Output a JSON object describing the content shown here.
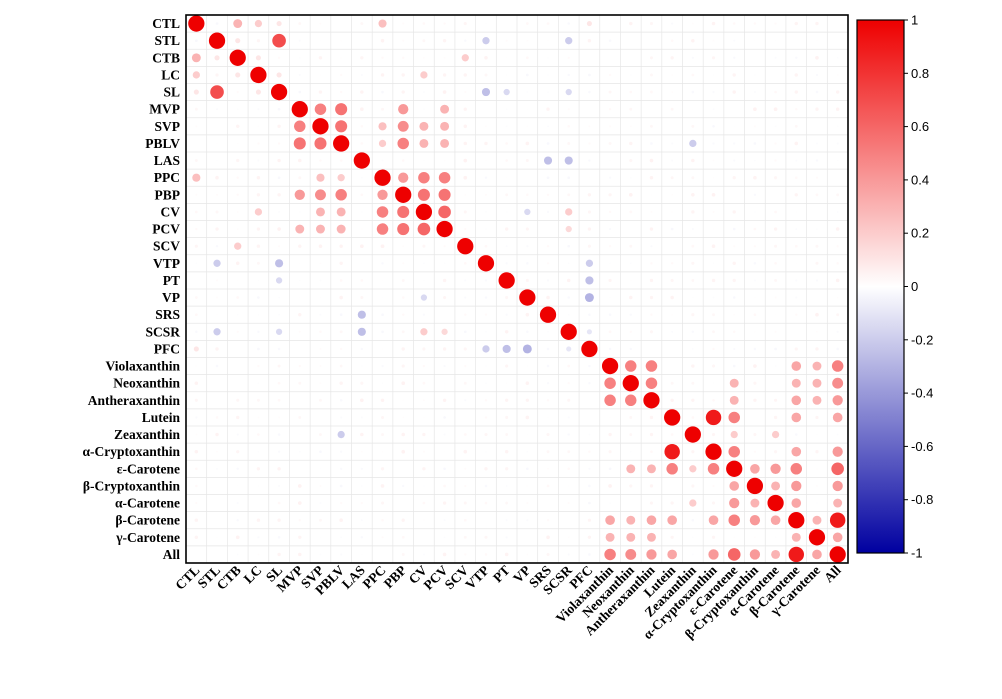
{
  "chart_data": {
    "type": "heatmap",
    "subtype": "correlation-dot-matrix",
    "variables": [
      "CTL",
      "STL",
      "CTB",
      "LC",
      "SL",
      "MVP",
      "SVP",
      "PBLV",
      "LAS",
      "PPC",
      "PBP",
      "CV",
      "PCV",
      "SCV",
      "VTP",
      "PT",
      "VP",
      "SRS",
      "SCSR",
      "PFC",
      "Violaxanthin",
      "Neoxanthin",
      "Antheraxanthin",
      "Lutein",
      "Zeaxanthin",
      "α-Cryptoxanthin",
      "ε-Carotene",
      "β-Cryptoxanthin",
      "α-Carotene",
      "β-Carotene",
      "γ-Carotene",
      "All"
    ],
    "encoding": "circle area and color encode correlation coefficient",
    "color_scale": {
      "min": -1,
      "max": 1,
      "low_color": "#0000a0",
      "mid_color": "#ffffff",
      "high_color": "#ee0000"
    },
    "colorbar_ticks": [
      "1",
      "0.8",
      "0.6",
      "0.4",
      "0.2",
      "0",
      "-0.2",
      "-0.4",
      "-0.6",
      "-0.8",
      "-1"
    ],
    "diagonal": 1,
    "correlations": [
      [
        "CTL",
        "CTB",
        0.3
      ],
      [
        "CTL",
        "LC",
        0.2
      ],
      [
        "CTL",
        "SL",
        0.1
      ],
      [
        "CTL",
        "PPC",
        0.25
      ],
      [
        "CTL",
        "PFC",
        0.1
      ],
      [
        "STL",
        "SL",
        0.7
      ],
      [
        "STL",
        "CTB",
        0.1
      ],
      [
        "STL",
        "VTP",
        -0.2
      ],
      [
        "STL",
        "SCSR",
        -0.2
      ],
      [
        "CTB",
        "LC",
        0.1
      ],
      [
        "CTB",
        "SCV",
        0.2
      ],
      [
        "LC",
        "CV",
        0.2
      ],
      [
        "LC",
        "SL",
        0.1
      ],
      [
        "SL",
        "VTP",
        -0.25
      ],
      [
        "SL",
        "PT",
        -0.15
      ],
      [
        "SL",
        "SCSR",
        -0.15
      ],
      [
        "MVP",
        "SVP",
        0.5
      ],
      [
        "MVP",
        "PBLV",
        0.55
      ],
      [
        "MVP",
        "PBP",
        0.4
      ],
      [
        "MVP",
        "PCV",
        0.3
      ],
      [
        "SVP",
        "PBLV",
        0.55
      ],
      [
        "SVP",
        "PPC",
        0.25
      ],
      [
        "SVP",
        "PBP",
        0.45
      ],
      [
        "SVP",
        "CV",
        0.3
      ],
      [
        "SVP",
        "PCV",
        0.3
      ],
      [
        "PBLV",
        "PPC",
        0.2
      ],
      [
        "PBLV",
        "PBP",
        0.5
      ],
      [
        "PBLV",
        "CV",
        0.3
      ],
      [
        "PBLV",
        "PCV",
        0.3
      ],
      [
        "LAS",
        "SRS",
        -0.25
      ],
      [
        "LAS",
        "SCSR",
        -0.25
      ],
      [
        "PPC",
        "PBP",
        0.4
      ],
      [
        "PPC",
        "CV",
        0.5
      ],
      [
        "PPC",
        "PCV",
        0.5
      ],
      [
        "PBP",
        "CV",
        0.55
      ],
      [
        "PBP",
        "PCV",
        0.55
      ],
      [
        "CV",
        "PCV",
        0.6
      ],
      [
        "CV",
        "SCSR",
        0.2
      ],
      [
        "CV",
        "VP",
        -0.15
      ],
      [
        "PCV",
        "SCSR",
        0.15
      ],
      [
        "VTP",
        "PFC",
        -0.2
      ],
      [
        "PT",
        "PFC",
        -0.25
      ],
      [
        "VP",
        "PFC",
        -0.3
      ],
      [
        "SCSR",
        "PFC",
        -0.1
      ],
      [
        "Violaxanthin",
        "Neoxanthin",
        0.5
      ],
      [
        "Violaxanthin",
        "Antheraxanthin",
        0.5
      ],
      [
        "Violaxanthin",
        "β-Carotene",
        0.35
      ],
      [
        "Violaxanthin",
        "γ-Carotene",
        0.3
      ],
      [
        "Violaxanthin",
        "All",
        0.5
      ],
      [
        "Neoxanthin",
        "Antheraxanthin",
        0.5
      ],
      [
        "Neoxanthin",
        "ε-Carotene",
        0.3
      ],
      [
        "Neoxanthin",
        "β-Carotene",
        0.3
      ],
      [
        "Neoxanthin",
        "γ-Carotene",
        0.3
      ],
      [
        "Neoxanthin",
        "All",
        0.45
      ],
      [
        "Antheraxanthin",
        "ε-Carotene",
        0.3
      ],
      [
        "Antheraxanthin",
        "β-Carotene",
        0.35
      ],
      [
        "Antheraxanthin",
        "γ-Carotene",
        0.3
      ],
      [
        "Antheraxanthin",
        "All",
        0.4
      ],
      [
        "Lutein",
        "α-Cryptoxanthin",
        0.9
      ],
      [
        "Lutein",
        "ε-Carotene",
        0.5
      ],
      [
        "Lutein",
        "β-Carotene",
        0.35
      ],
      [
        "Lutein",
        "All",
        0.35
      ],
      [
        "Zeaxanthin",
        "ε-Carotene",
        0.2
      ],
      [
        "Zeaxanthin",
        "α-Carotene",
        0.2
      ],
      [
        "Zeaxanthin",
        "PBLV",
        -0.2
      ],
      [
        "α-Cryptoxanthin",
        "ε-Carotene",
        0.5
      ],
      [
        "α-Cryptoxanthin",
        "β-Carotene",
        0.35
      ],
      [
        "α-Cryptoxanthin",
        "All",
        0.4
      ],
      [
        "ε-Carotene",
        "β-Cryptoxanthin",
        0.35
      ],
      [
        "ε-Carotene",
        "α-Carotene",
        0.4
      ],
      [
        "ε-Carotene",
        "β-Carotene",
        0.5
      ],
      [
        "ε-Carotene",
        "All",
        0.6
      ],
      [
        "β-Cryptoxanthin",
        "α-Carotene",
        0.3
      ],
      [
        "β-Cryptoxanthin",
        "β-Carotene",
        0.4
      ],
      [
        "β-Cryptoxanthin",
        "All",
        0.4
      ],
      [
        "α-Carotene",
        "β-Carotene",
        0.35
      ],
      [
        "α-Carotene",
        "All",
        0.3
      ],
      [
        "β-Carotene",
        "γ-Carotene",
        0.3
      ],
      [
        "β-Carotene",
        "All",
        0.9
      ],
      [
        "γ-Carotene",
        "All",
        0.35
      ]
    ],
    "background_noise": 0.04,
    "title": "",
    "legend": "colorbar right"
  }
}
